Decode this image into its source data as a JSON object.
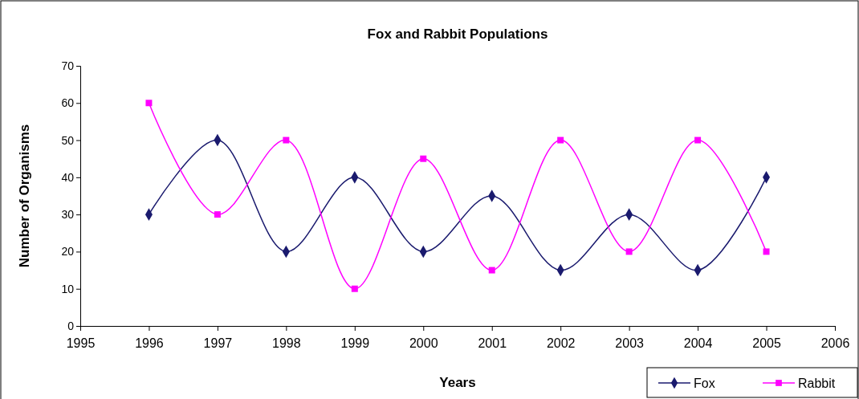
{
  "chart_data": {
    "type": "line",
    "title": "Fox and Rabbit Populations",
    "xlabel": "Years",
    "ylabel": "Number of Organisms",
    "x": [
      1996,
      1997,
      1998,
      1999,
      2000,
      2001,
      2002,
      2003,
      2004,
      2005
    ],
    "xlim": [
      1995,
      2006
    ],
    "xticks": [
      1995,
      1996,
      1997,
      1998,
      1999,
      2000,
      2001,
      2002,
      2003,
      2004,
      2005,
      2006
    ],
    "ylim": [
      0,
      70
    ],
    "yticks": [
      0,
      10,
      20,
      30,
      40,
      50,
      60,
      70
    ],
    "series": [
      {
        "name": "Fox",
        "color": "#1a1a6e",
        "marker": "diamond",
        "values": [
          30,
          50,
          20,
          40,
          20,
          35,
          15,
          30,
          15,
          40
        ]
      },
      {
        "name": "Rabbit",
        "color": "#ff00ff",
        "marker": "square",
        "values": [
          60,
          30,
          50,
          10,
          45,
          15,
          50,
          20,
          50,
          20
        ]
      }
    ],
    "grid": false,
    "legend": "bottom right",
    "line_style": "solid"
  }
}
